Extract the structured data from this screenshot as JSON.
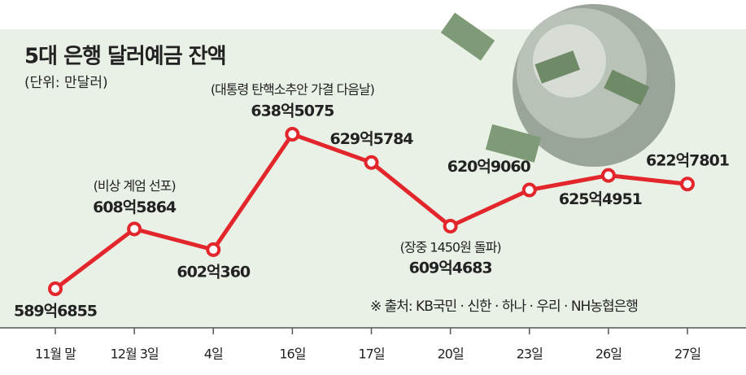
{
  "chart_data": {
    "type": "line",
    "title": "5대 은행 달러예금 잔액",
    "subtitle": "(단위: 만달러)",
    "categories": [
      "11월 말",
      "12월 3일",
      "4일",
      "16일",
      "17일",
      "20일",
      "23일",
      "26일",
      "27일"
    ],
    "values": [
      5896855,
      6085864,
      6020360,
      6385075,
      6295784,
      6094683,
      6209060,
      6254951,
      6227801
    ],
    "value_labels": [
      "589억6855",
      "608억5864",
      "602억360",
      "638억5075",
      "629억5784",
      "609억4683",
      "620억9060",
      "625억4951",
      "622억7801"
    ],
    "color": "#e3262b",
    "annotations": [
      "(비상 계엄 선포)",
      "(대통령 탄핵소추안 가결 다음날)",
      "(장중 1450원 돌파)"
    ],
    "source": "※ 출처: KB국민 · 신한 · 하나 · 우리 · NH농협은행"
  }
}
